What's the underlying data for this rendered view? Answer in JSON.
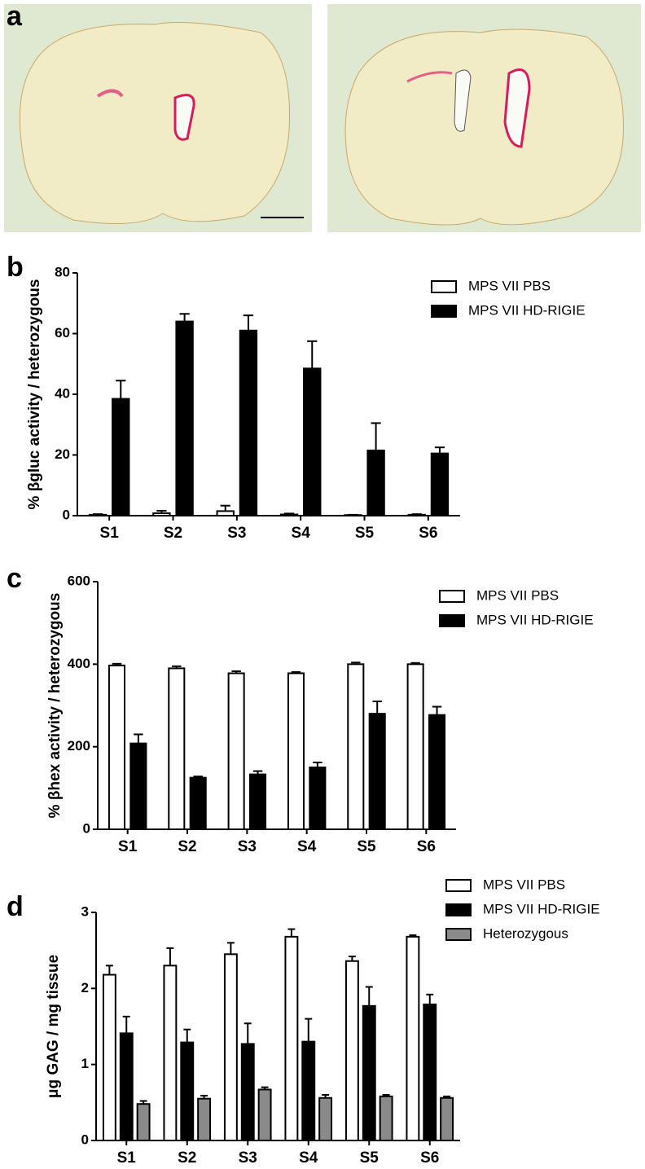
{
  "image_panel": {
    "panel_label": "a"
  },
  "chart_data": [
    {
      "type": "bar",
      "panel_label": "b",
      "ylabel": "% βgluc activity / heterozygous",
      "categories": [
        "S1",
        "S2",
        "S3",
        "S4",
        "S5",
        "S6"
      ],
      "ylim": [
        0,
        80
      ],
      "yticks": [
        0,
        20,
        40,
        60,
        80
      ],
      "series": [
        {
          "name": "MPS VII PBS",
          "color": "#ffffff",
          "values": [
            0.3,
            0.8,
            1.5,
            0.4,
            0.2,
            0.3
          ],
          "errors": [
            0.2,
            0.8,
            1.8,
            0.3,
            0.1,
            0.2
          ]
        },
        {
          "name": "MPS VII HD-RIGIE",
          "color": "#000000",
          "values": [
            38.5,
            64,
            61,
            48.5,
            21.5,
            20.5
          ],
          "errors": [
            6,
            2.5,
            5,
            9,
            9,
            2
          ]
        }
      ]
    },
    {
      "type": "bar",
      "panel_label": "c",
      "ylabel": "% βhex activity / heterozygous",
      "categories": [
        "S1",
        "S2",
        "S3",
        "S4",
        "S5",
        "S6"
      ],
      "ylim": [
        0,
        600
      ],
      "yticks": [
        0,
        200,
        400,
        600
      ],
      "series": [
        {
          "name": "MPS VII PBS",
          "color": "#ffffff",
          "values": [
            397,
            390,
            378,
            378,
            400,
            400
          ],
          "errors": [
            4,
            5,
            5,
            3,
            4,
            3
          ]
        },
        {
          "name": "MPS VII HD-RIGIE",
          "color": "#000000",
          "values": [
            208,
            125,
            133,
            150,
            280,
            277
          ],
          "errors": [
            22,
            3,
            8,
            12,
            30,
            20
          ]
        }
      ]
    },
    {
      "type": "bar",
      "panel_label": "d",
      "ylabel": "μg GAG / mg tissue",
      "categories": [
        "S1",
        "S2",
        "S3",
        "S4",
        "S5",
        "S6"
      ],
      "ylim": [
        0,
        3
      ],
      "yticks": [
        0,
        1,
        2,
        3
      ],
      "series": [
        {
          "name": "MPS VII PBS",
          "color": "#ffffff",
          "values": [
            2.18,
            2.3,
            2.45,
            2.68,
            2.36,
            2.68
          ],
          "errors": [
            0.12,
            0.23,
            0.15,
            0.1,
            0.06,
            0.02
          ]
        },
        {
          "name": "MPS VII HD-RIGIE",
          "color": "#000000",
          "values": [
            1.41,
            1.29,
            1.27,
            1.3,
            1.77,
            1.79
          ],
          "errors": [
            0.22,
            0.17,
            0.27,
            0.3,
            0.25,
            0.13
          ]
        },
        {
          "name": "Heterozygous",
          "color": "#8a8a8a",
          "values": [
            0.48,
            0.55,
            0.67,
            0.56,
            0.58,
            0.56
          ],
          "errors": [
            0.04,
            0.04,
            0.03,
            0.04,
            0.02,
            0.02
          ]
        }
      ]
    }
  ]
}
